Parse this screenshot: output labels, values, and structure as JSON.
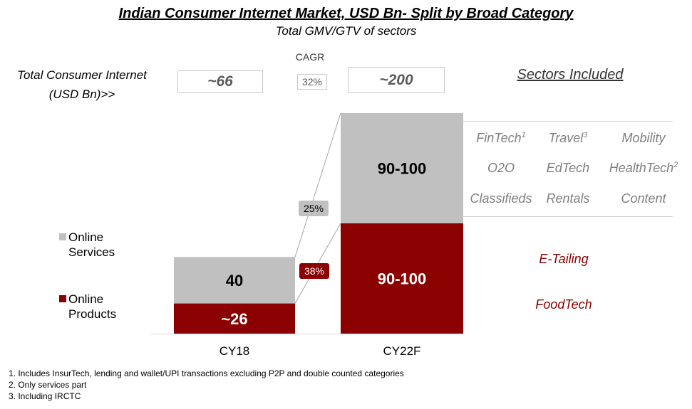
{
  "header": {
    "title": "Indian Consumer Internet Market, USD Bn- Split by Broad Category",
    "subtitle": "Total GMV/GTV of sectors"
  },
  "totals": {
    "label_line1": "Total Consumer Internet",
    "label_line2": "(USD Bn)>>",
    "cy18": "~66",
    "cy22": "~200",
    "cagr_label": "CAGR",
    "cagr_value": "32%"
  },
  "sectors": {
    "title": "Sectors Included",
    "services": [
      {
        "name": "FinTech",
        "sup": "1"
      },
      {
        "name": "Travel",
        "sup": "3"
      },
      {
        "name": "Mobility",
        "sup": ""
      },
      {
        "name": "O2O",
        "sup": ""
      },
      {
        "name": "EdTech",
        "sup": ""
      },
      {
        "name": "HealthTech",
        "sup": "2"
      },
      {
        "name": "Classifieds",
        "sup": ""
      },
      {
        "name": "Rentals",
        "sup": ""
      },
      {
        "name": "Content",
        "sup": ""
      }
    ],
    "products": [
      "E-Tailing",
      "FoodTech"
    ]
  },
  "legend": {
    "services_line1": "Online",
    "services_line2": "Services",
    "products_line1": "Online",
    "products_line2": "Products"
  },
  "colors": {
    "services": "#c0c0c0",
    "products": "#8b0000",
    "connector": "#a6a6a6"
  },
  "chart_data": {
    "type": "bar",
    "stacked": true,
    "categories": [
      "CY18",
      "CY22F"
    ],
    "series": [
      {
        "name": "Online Products",
        "values": [
          26,
          95
        ],
        "labels": [
          "~26",
          "90-100"
        ],
        "growth_label": "38%"
      },
      {
        "name": "Online Services",
        "values": [
          40,
          95
        ],
        "labels": [
          "40",
          "90-100"
        ],
        "growth_label": "25%"
      }
    ]
  },
  "footnotes": [
    "1.  Includes InsurTech, lending and wallet/UPI transactions excluding P2P and double counted categories",
    "2.  Only services part",
    "3.  Including IRCTC"
  ]
}
